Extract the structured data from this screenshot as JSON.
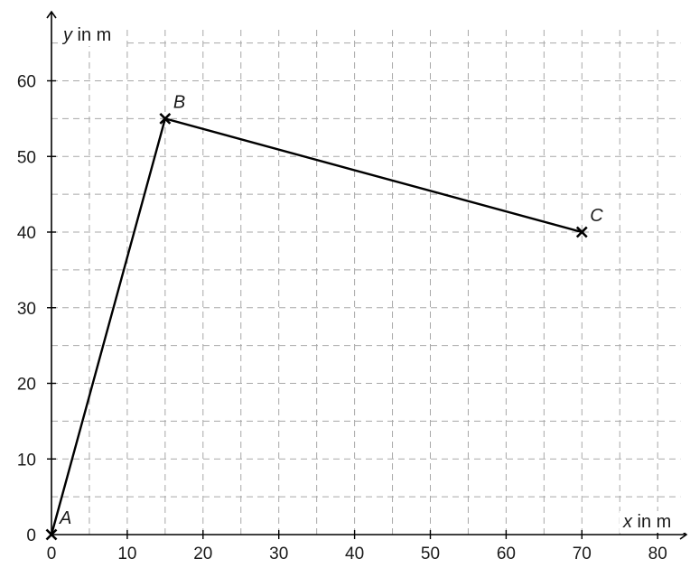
{
  "chart_data": {
    "type": "line",
    "x_axis": {
      "label_var": "x",
      "label_unit": " in m",
      "range": [
        0,
        83
      ],
      "ticks": [
        0,
        10,
        20,
        30,
        40,
        50,
        60,
        70,
        80
      ],
      "tick_labels": [
        "0",
        "10",
        "20",
        "30",
        "40",
        "50",
        "60",
        "70",
        "80"
      ],
      "grid_step": 5
    },
    "y_axis": {
      "label_var": "y",
      "label_unit": " in m",
      "range": [
        0,
        67
      ],
      "ticks": [
        10,
        20,
        30,
        40,
        50,
        60
      ],
      "tick_labels": [
        "10",
        "20",
        "30",
        "40",
        "50",
        "60"
      ],
      "grid_step": 5
    },
    "origin_label": "0",
    "grid": true,
    "points": [
      {
        "label": "A",
        "x": 0,
        "y": 0
      },
      {
        "label": "B",
        "x": 15,
        "y": 55
      },
      {
        "label": "C",
        "x": 70,
        "y": 40
      }
    ],
    "path": [
      "A",
      "B",
      "C"
    ],
    "colors": {
      "line": "#000000",
      "grid": "#a8a8a8",
      "background": "#ffffff"
    }
  }
}
